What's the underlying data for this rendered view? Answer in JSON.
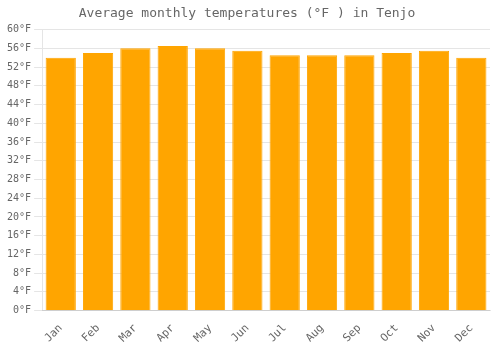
{
  "chart_data": {
    "type": "bar",
    "title": "Average monthly temperatures (°F ) in Tenjo",
    "categories": [
      "Jan",
      "Feb",
      "Mar",
      "Apr",
      "May",
      "Jun",
      "Jul",
      "Aug",
      "Sep",
      "Oct",
      "Nov",
      "Dec"
    ],
    "values": [
      54.0,
      55.0,
      56.0,
      56.5,
      56.0,
      55.5,
      54.5,
      54.5,
      54.5,
      55.0,
      55.5,
      54.0
    ],
    "color": "#FFA500",
    "ylim": [
      0,
      60
    ],
    "yticks": [
      {
        "value": 0,
        "label": "0°F"
      },
      {
        "value": 4,
        "label": "4°F"
      },
      {
        "value": 8,
        "label": "8°F"
      },
      {
        "value": 12,
        "label": "12°F"
      },
      {
        "value": 16,
        "label": "16°F"
      },
      {
        "value": 20,
        "label": "20°F"
      },
      {
        "value": 24,
        "label": "24°F"
      },
      {
        "value": 28,
        "label": "28°F"
      },
      {
        "value": 32,
        "label": "32°F"
      },
      {
        "value": 36,
        "label": "36°F"
      },
      {
        "value": 40,
        "label": "40°F"
      },
      {
        "value": 44,
        "label": "44°F"
      },
      {
        "value": 48,
        "label": "48°F"
      },
      {
        "value": 52,
        "label": "52°F"
      },
      {
        "value": 56,
        "label": "56°F"
      },
      {
        "value": 60,
        "label": "60°F"
      }
    ],
    "grid": true
  }
}
